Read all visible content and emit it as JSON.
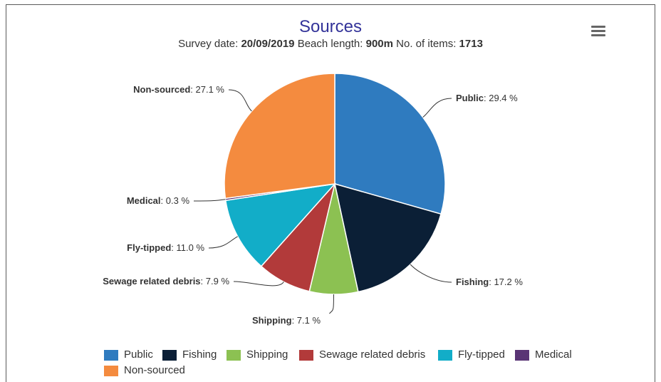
{
  "chart_data": {
    "type": "pie",
    "title": "Sources",
    "subtitle": {
      "survey_date_label": "Survey date:",
      "survey_date": "20/09/2019",
      "beach_length_label": "Beach length:",
      "beach_length": "900m",
      "items_label": "No. of items:",
      "items": "1713"
    },
    "slices": [
      {
        "name": "Public",
        "value": 29.4,
        "label": "29.4 %",
        "color": "#2f7bbf"
      },
      {
        "name": "Fishing",
        "value": 17.2,
        "label": "17.2 %",
        "color": "#0b1f36"
      },
      {
        "name": "Shipping",
        "value": 7.1,
        "label": "7.1 %",
        "color": "#8cc152"
      },
      {
        "name": "Sewage related debris",
        "value": 7.9,
        "label": "7.9 %",
        "color": "#b23a3a"
      },
      {
        "name": "Fly-tipped",
        "value": 11.0,
        "label": "11.0 %",
        "color": "#12adc8"
      },
      {
        "name": "Medical",
        "value": 0.3,
        "label": "0.3 %",
        "color": "#5a3475"
      },
      {
        "name": "Non-sourced",
        "value": 27.1,
        "label": "27.1 %",
        "color": "#f48b3f"
      }
    ],
    "legend_position": "bottom"
  },
  "menu": {
    "icon": "hamburger-menu-icon"
  }
}
